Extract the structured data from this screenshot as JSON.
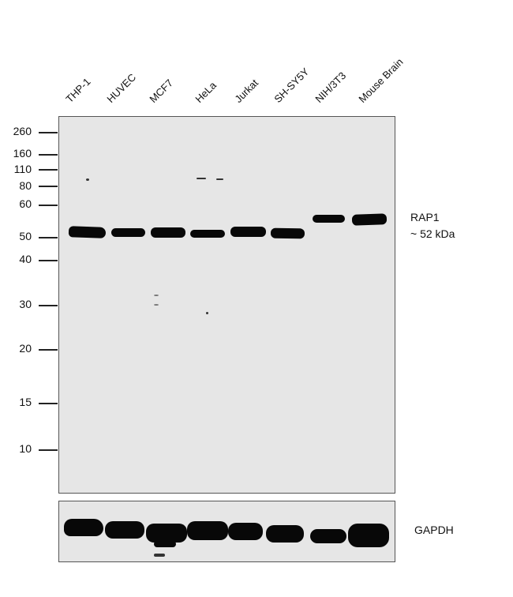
{
  "lanes": [
    "THP-1",
    "HUVEC",
    "MCF7",
    "HeLa",
    "Jurkat",
    "SH-SY5Y",
    "NIH/3T3",
    "Mouse Brain"
  ],
  "markers": [
    "260",
    "160",
    "110",
    "80",
    "60",
    "50",
    "40",
    "30",
    "20",
    "15",
    "10"
  ],
  "target": {
    "name": "RAP1",
    "size": "~ 52 kDa"
  },
  "loading_control": "GAPDH"
}
